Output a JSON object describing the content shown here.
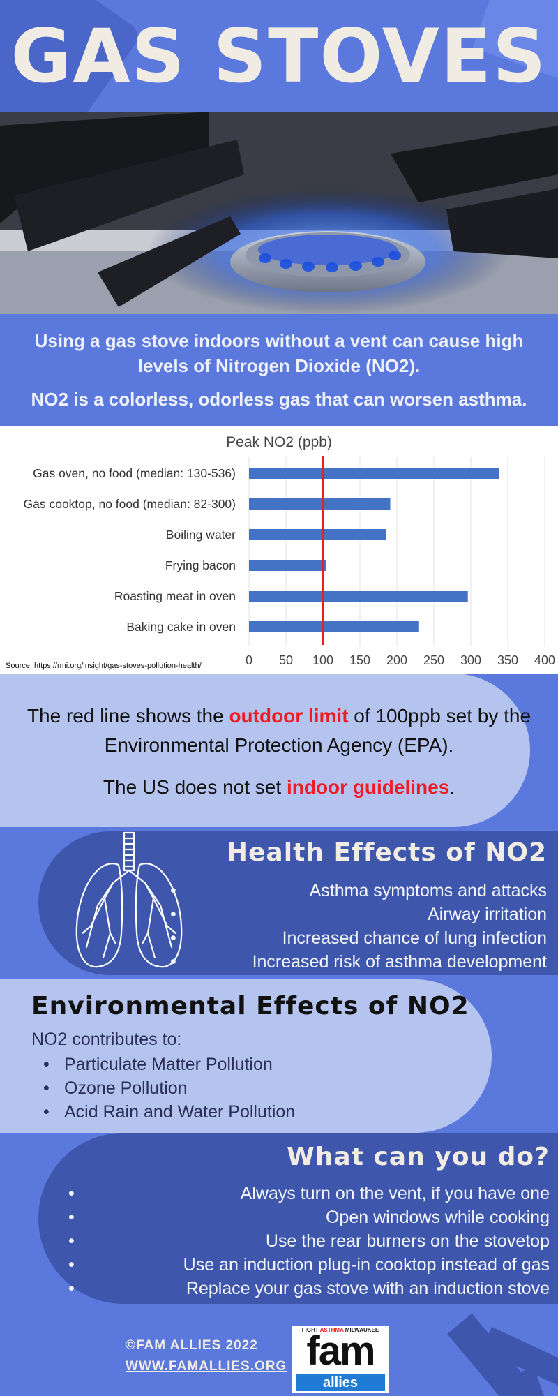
{
  "title": "GAS STOVES",
  "intro": {
    "line1": "Using a gas stove indoors without a vent can cause high levels of Nitrogen Dioxide (NO2).",
    "line2": "NO2 is a colorless, odorless gas that can worsen asthma."
  },
  "chart_data": {
    "type": "bar",
    "orientation": "horizontal",
    "title": "Peak NO2 (ppb)",
    "categories": [
      "Gas oven, no food (median: 130-536)",
      "Gas cooktop, no food (median: 82-300)",
      "Boiling water",
      "Frying bacon",
      "Roasting meat in oven",
      "Baking cake in oven"
    ],
    "values": [
      338,
      191,
      185,
      104,
      296,
      230
    ],
    "xlim": [
      0,
      400
    ],
    "xticks": [
      0,
      50,
      100,
      150,
      200,
      250,
      300,
      350,
      400
    ],
    "reference_line": {
      "value": 100,
      "color": "#ee1c25"
    },
    "bar_color": "#4472c4",
    "grid": true,
    "source": "Source: https://rmi.org/insight/gas-stoves-pollution-health/"
  },
  "limit": {
    "p1_before": "The red line shows the ",
    "p1_highlight": "outdoor limit",
    "p1_after": " of 100ppb set by the Environmental Protection Agency (EPA).",
    "p2_before": "The US does not set ",
    "p2_highlight": "indoor guidelines",
    "p2_after": "."
  },
  "health": {
    "title": "Health Effects of NO2",
    "items": [
      "Asthma symptoms and attacks",
      "Airway irritation",
      "Increased chance of lung infection",
      "Increased risk of asthma development"
    ]
  },
  "environment": {
    "title": "Environmental Effects of NO2",
    "intro": "NO2 contributes to:",
    "items": [
      "Particulate Matter Pollution",
      "Ozone Pollution",
      "Acid Rain and Water Pollution"
    ]
  },
  "todo": {
    "title": "What can you do?",
    "items": [
      "Always turn on the vent, if you have one",
      "Open windows while cooking",
      "Use the rear burners on the stovetop",
      "Use an induction plug-in cooktop instead of gas",
      "Replace your gas stove with an induction stove"
    ]
  },
  "footer": {
    "copyright": "©FAM ALLIES 2022",
    "website": "WWW.FAMALLIES.ORG",
    "logo_top_1": "FIGHT ",
    "logo_top_2": "ASTHMA",
    "logo_top_3": " MILWAUKEE",
    "logo_fam": "fam",
    "logo_allies": "allies"
  },
  "colors": {
    "background": "#5b79dd",
    "dark_band": "#3e57ad",
    "light_band": "#b5c3ef",
    "title_cream": "#f1ece3",
    "highlight_red": "#ee1c25"
  },
  "icons": [
    "stove-flame-photo",
    "lungs-icon",
    "fam-allies-logo"
  ]
}
